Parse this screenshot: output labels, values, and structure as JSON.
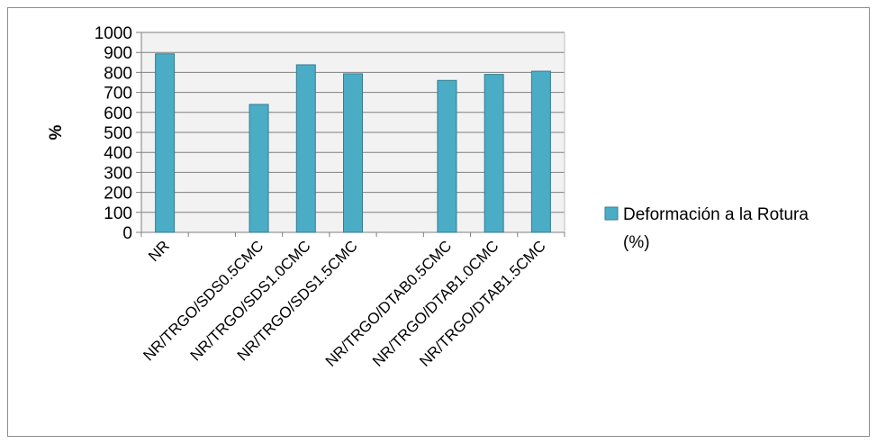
{
  "chart_data": {
    "type": "bar",
    "title": "",
    "xlabel": "",
    "ylabel": "%",
    "ylim": [
      0,
      1000
    ],
    "yticks": [
      0,
      100,
      200,
      300,
      400,
      500,
      600,
      700,
      800,
      900,
      1000
    ],
    "grid": true,
    "legend_position": "right",
    "categories": [
      "NR",
      "",
      "NR/TRGO/SDS0.5CMC",
      "NR/TRGO/SDS1.0CMC",
      "NR/TRGO/SDS1.5CMC",
      "",
      "NR/TRGO/DTAB0.5CMC",
      "NR/TRGO/DTAB1.0CMC",
      "NR/TRGO/DTAB1.5CMC"
    ],
    "series": [
      {
        "name": "Deformación a la Rotura (%)",
        "legend_lines": [
          "Deformación a la Rotura",
          "(%)"
        ],
        "color": "#4bacc6",
        "edge_color": "#357d91",
        "values": [
          893,
          null,
          640,
          838,
          793,
          null,
          760,
          790,
          806
        ]
      }
    ]
  }
}
